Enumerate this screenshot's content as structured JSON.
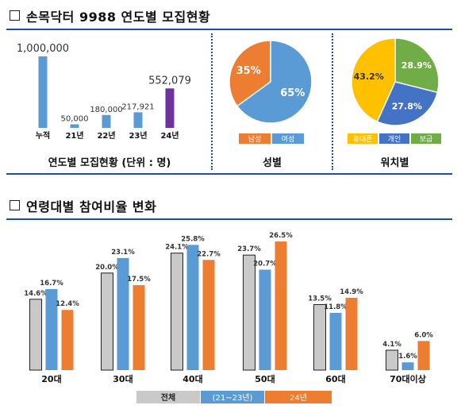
{
  "section1": {
    "title": "손목닥터 9988 연도별 모집현황"
  },
  "section2": {
    "title": "연령대별 참여비율 변화"
  },
  "chart_data": [
    {
      "type": "bar",
      "title": "연도별 모집현황 (단위 : 명)",
      "categories": [
        "누적",
        "21년",
        "22년",
        "23년",
        "24년"
      ],
      "values": [
        1000000,
        50000,
        180000,
        217921,
        552079
      ],
      "value_labels": [
        "1,000,000",
        "50,000",
        "180,000",
        "217,921",
        "552,079"
      ],
      "colors": [
        "#5b9bd5",
        "#5b9bd5",
        "#5b9bd5",
        "#5b9bd5",
        "#7030a0"
      ],
      "ylim": [
        0,
        1000000
      ]
    },
    {
      "type": "pie",
      "title": "성별",
      "labels": [
        "남성",
        "여성"
      ],
      "values": [
        35,
        65
      ],
      "value_labels": [
        "35%",
        "65%"
      ],
      "colors": [
        "#ed7d31",
        "#5b9bd5"
      ]
    },
    {
      "type": "pie",
      "title": "워치별",
      "labels": [
        "휴대폰",
        "개인",
        "보급"
      ],
      "values": [
        43.2,
        27.8,
        28.9
      ],
      "value_labels": [
        "43.2%",
        "27.8%",
        "28.9%"
      ],
      "colors": [
        "#ffc000",
        "#4472c4",
        "#70ad47"
      ]
    },
    {
      "type": "bar",
      "categories": [
        "20대",
        "30대",
        "40대",
        "50대",
        "60대",
        "70대이상"
      ],
      "series": [
        {
          "name": "전체",
          "values": [
            14.6,
            20.0,
            24.1,
            23.7,
            13.5,
            4.1
          ],
          "labels": [
            "14.6%",
            "20.0%",
            "24.1%",
            "23.7%",
            "13.5%",
            "4.1%"
          ],
          "color": "#c9c9c9"
        },
        {
          "name": "(21~23년)",
          "values": [
            16.7,
            23.1,
            25.8,
            20.7,
            11.8,
            1.6
          ],
          "labels": [
            "16.7%",
            "23.1%",
            "25.8%",
            "20.7%",
            "11.8%",
            "1.6%"
          ],
          "color": "#5b9bd5"
        },
        {
          "name": "24년",
          "values": [
            12.4,
            17.5,
            22.7,
            26.5,
            14.9,
            6.0
          ],
          "labels": [
            "12.4%",
            "17.5%",
            "22.7%",
            "26.5%",
            "14.9%",
            "6.0%"
          ],
          "color": "#ed7d31"
        }
      ],
      "ylim": [
        0,
        27
      ],
      "legend": "bottom"
    }
  ]
}
